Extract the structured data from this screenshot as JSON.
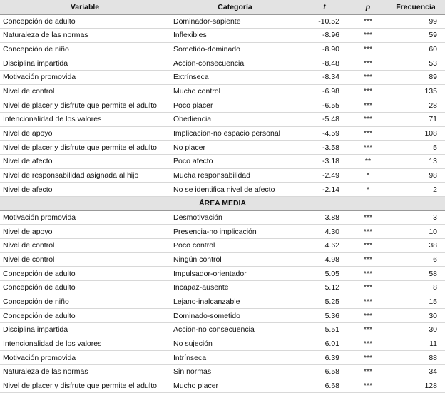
{
  "table": {
    "header": [
      "Variable",
      "Categoría",
      "t",
      "p",
      "Frecuencia"
    ],
    "rows": [
      [
        "Concepción de adulto",
        "Dominador-sapiente",
        "-10.52",
        "***",
        "99"
      ],
      [
        "Naturaleza de las normas",
        "Inflexibles",
        "-8.96",
        "***",
        "59"
      ],
      [
        "Concepción de niño",
        "Sometido-dominado",
        "-8.90",
        "***",
        "60"
      ],
      [
        "Disciplina impartida",
        "Acción-consecuencia",
        "-8.48",
        "***",
        "53"
      ],
      [
        "Motivación promovida",
        "Extrínseca",
        "-8.34",
        "***",
        "89"
      ],
      [
        "Nivel de control",
        "Mucho control",
        "-6.98",
        "***",
        "135"
      ],
      [
        "Nivel de placer y disfrute que permite el adulto",
        "Poco placer",
        "-6.55",
        "***",
        "28"
      ],
      [
        "Intencionalidad de los valores",
        "Obediencia",
        "-5.48",
        "***",
        "71"
      ],
      [
        "Nivel de apoyo",
        "Implicación-no espacio personal",
        "-4.59",
        "***",
        "108"
      ],
      [
        "Nivel de placer y disfrute que permite el adulto",
        "No placer",
        "-3.58",
        "***",
        "5"
      ],
      [
        "Nivel de afecto",
        "Poco afecto",
        "-3.18",
        "**",
        "13"
      ],
      [
        "Nivel de responsabilidad asignada al hijo",
        "Mucha responsabilidad",
        "-2.49",
        "*",
        "98"
      ],
      [
        "Nivel de afecto",
        "No se identifica nivel de afecto",
        "-2.14",
        "*",
        "2"
      ]
    ],
    "section": "ÁREA MEDIA",
    "rows2": [
      [
        "Motivación promovida",
        "Desmotivación",
        "3.88",
        "***",
        "3"
      ],
      [
        "Nivel de apoyo",
        "Presencia-no implicación",
        "4.30",
        "***",
        "10"
      ],
      [
        "Nivel de control",
        "Poco control",
        "4.62",
        "***",
        "38"
      ],
      [
        "Nivel de control",
        "Ningún control",
        "4.98",
        "***",
        "6"
      ],
      [
        "Concepción de adulto",
        "Impulsador-orientador",
        "5.05",
        "***",
        "58"
      ],
      [
        "Concepción de adulto",
        "Incapaz-ausente",
        "5.12",
        "***",
        "8"
      ],
      [
        "Concepción de niño",
        "Lejano-inalcanzable",
        "5.25",
        "***",
        "15"
      ],
      [
        "Concepción de adulto",
        "Dominado-sometido",
        "5.36",
        "***",
        "30"
      ],
      [
        "Disciplina impartida",
        "Acción-no consecuencia",
        "5.51",
        "***",
        "30"
      ],
      [
        "Intencionalidad de los valores",
        "No sujeción",
        "6.01",
        "***",
        "11"
      ],
      [
        "Motivación promovida",
        "Intrínseca",
        "6.39",
        "***",
        "88"
      ],
      [
        "Naturaleza de las normas",
        "Sin normas",
        "6.58",
        "***",
        "34"
      ],
      [
        "Nivel de placer y disfrute que permite el adulto",
        "Mucho placer",
        "6.68",
        "***",
        "128"
      ]
    ]
  }
}
